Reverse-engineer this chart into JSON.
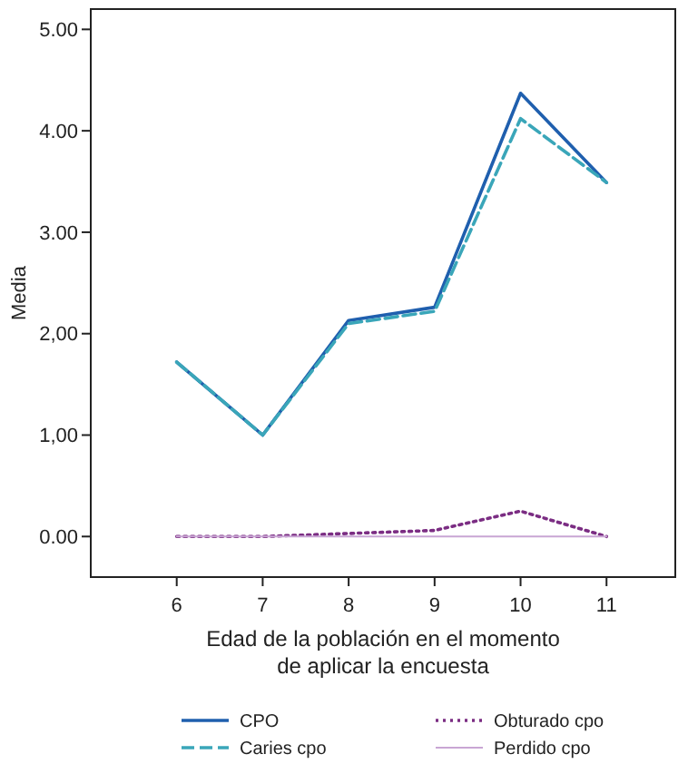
{
  "chart_data": {
    "type": "line",
    "ylabel": "Media",
    "xlabel": "Edad de la población en el momento de aplicar la encuesta",
    "x": [
      6,
      7,
      8,
      9,
      10,
      11
    ],
    "xlim": [
      5,
      11.8
    ],
    "xticks": [
      6,
      7,
      8,
      9,
      10,
      11
    ],
    "ylim": [
      -0.4,
      5.2
    ],
    "yticks": [
      {
        "value": 0,
        "label": "0.00"
      },
      {
        "value": 1,
        "label": "1,00"
      },
      {
        "value": 2,
        "label": "2,00"
      },
      {
        "value": 3,
        "label": "3.00"
      },
      {
        "value": 4,
        "label": "4.00"
      },
      {
        "value": 5,
        "label": "5.00"
      }
    ],
    "grid": false,
    "legend": "bottom",
    "marker": "none",
    "series": [
      {
        "name": "CPO",
        "color": "#1f5fae",
        "values": [
          1.72,
          1.0,
          2.13,
          2.26,
          4.37,
          3.49
        ],
        "line_style": "solid"
      },
      {
        "name": "Caries cpo",
        "color": "#3aa6b9",
        "values": [
          1.72,
          1.0,
          2.1,
          2.22,
          4.12,
          3.49
        ],
        "line_style": "dashed"
      },
      {
        "name": "Obturado cpo",
        "color": "#7b2d83",
        "values": [
          0,
          0,
          0.03,
          0.06,
          0.25,
          0
        ],
        "line_style": "dotted"
      },
      {
        "name": "Perdido cpo",
        "color": "#c9a6d4",
        "values": [
          0,
          0,
          0,
          0,
          0,
          0
        ],
        "line_style": "solid"
      }
    ]
  }
}
